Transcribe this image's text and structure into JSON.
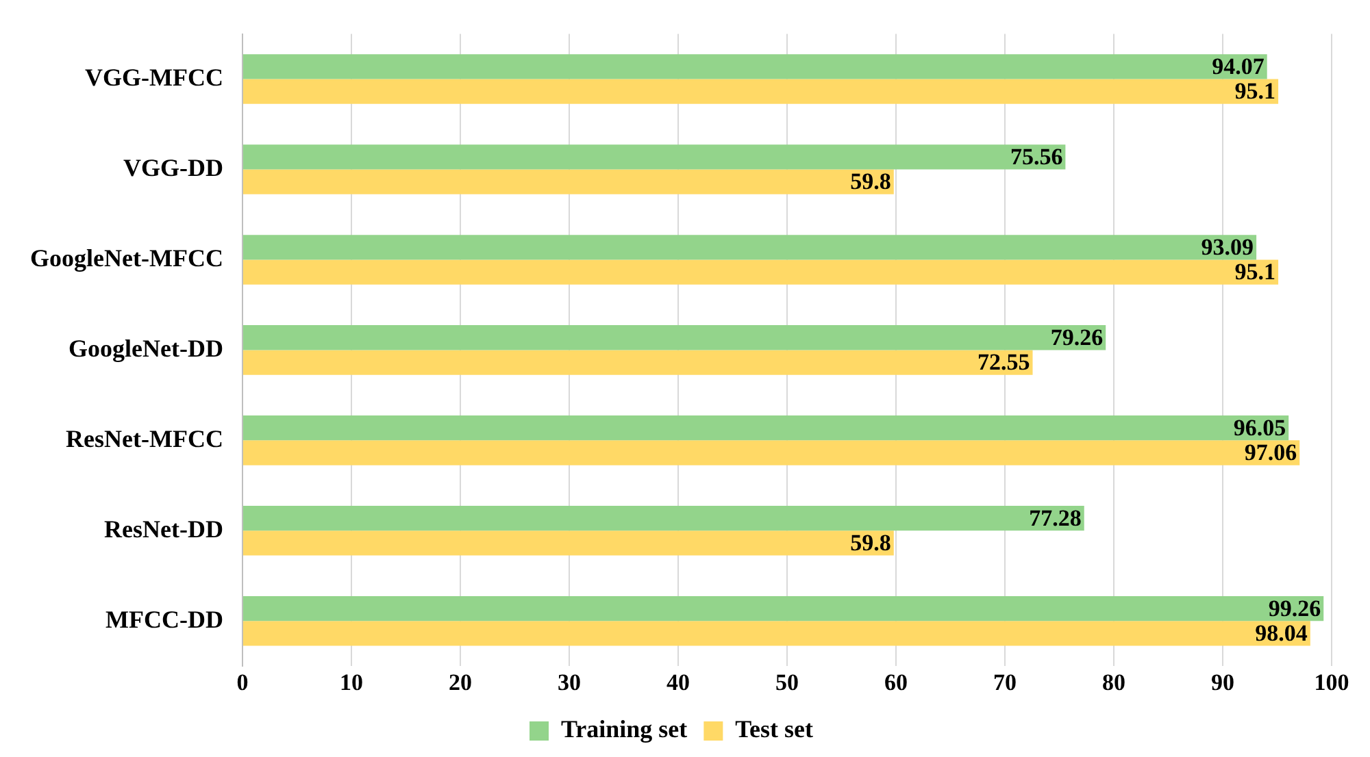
{
  "chart_data": {
    "type": "bar",
    "orientation": "horizontal",
    "categories": [
      "VGG-MFCC",
      "VGG-DD",
      "GoogleNet-MFCC",
      "GoogleNet-DD",
      "ResNet-MFCC",
      "ResNet-DD",
      "MFCC-DD"
    ],
    "series": [
      {
        "name": "Training set",
        "color": "#93d48b",
        "values": [
          94.07,
          75.56,
          93.09,
          79.26,
          96.05,
          77.28,
          99.26
        ]
      },
      {
        "name": "Test set",
        "color": "#ffd966",
        "values": [
          95.1,
          59.8,
          95.1,
          72.55,
          97.06,
          59.8,
          98.04
        ]
      }
    ],
    "xlim": [
      0,
      100
    ],
    "xticks": [
      0,
      10,
      20,
      30,
      40,
      50,
      60,
      70,
      80,
      90,
      100
    ],
    "grid": "x",
    "legend": "bottom",
    "data_labels": true
  }
}
